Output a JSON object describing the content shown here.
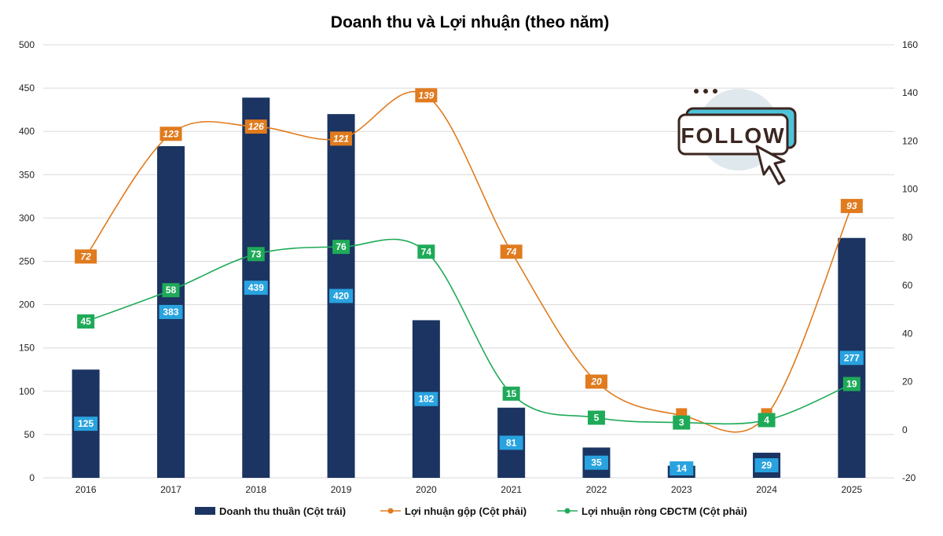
{
  "chart_data": {
    "type": "bar+line",
    "title": "Doanh thu và Lợi nhuận (theo năm)",
    "categories": [
      "2016",
      "2017",
      "2018",
      "2019",
      "2020",
      "2021",
      "2022",
      "2023",
      "2024",
      "2025"
    ],
    "y_left": {
      "min": 0,
      "max": 500,
      "step": 50,
      "ticks": [
        "0",
        "50",
        "100",
        "150",
        "200",
        "250",
        "300",
        "350",
        "400",
        "450",
        "500"
      ]
    },
    "y_right": {
      "min": -20,
      "max": 160,
      "step": 20,
      "ticks": [
        "-20",
        "0",
        "20",
        "40",
        "60",
        "80",
        "100",
        "120",
        "140",
        "160"
      ]
    },
    "grid": true,
    "legend_position": "bottom",
    "series": [
      {
        "name": "Doanh thu thuần (Cột trái)",
        "type": "bar",
        "axis": "left",
        "color": "#1b3461",
        "label_color": "#29a3df",
        "values": [
          125,
          383,
          439,
          420,
          182,
          81,
          35,
          14,
          29,
          277
        ]
      },
      {
        "name": "Lợi nhuận gộp (Cột phải)",
        "type": "line",
        "axis": "right",
        "color": "#e07b1e",
        "values": [
          72,
          123,
          126,
          121,
          139,
          74,
          20,
          6,
          6,
          93
        ],
        "labels": [
          "72",
          "123",
          "126",
          "121",
          "139",
          "74",
          "20",
          "",
          "",
          "93"
        ]
      },
      {
        "name": "Lợi nhuận ròng CĐCTM (Cột phải)",
        "type": "line",
        "axis": "right",
        "color": "#1faa59",
        "values": [
          45,
          58,
          73,
          76,
          74,
          15,
          5,
          3,
          4,
          19
        ],
        "labels": [
          "45",
          "58",
          "73",
          "76",
          "74",
          "15",
          "5",
          "3",
          "4",
          "19"
        ]
      }
    ]
  },
  "overlay": {
    "follow_text": "FOLLOW",
    "icon": "cursor-click-icon"
  }
}
